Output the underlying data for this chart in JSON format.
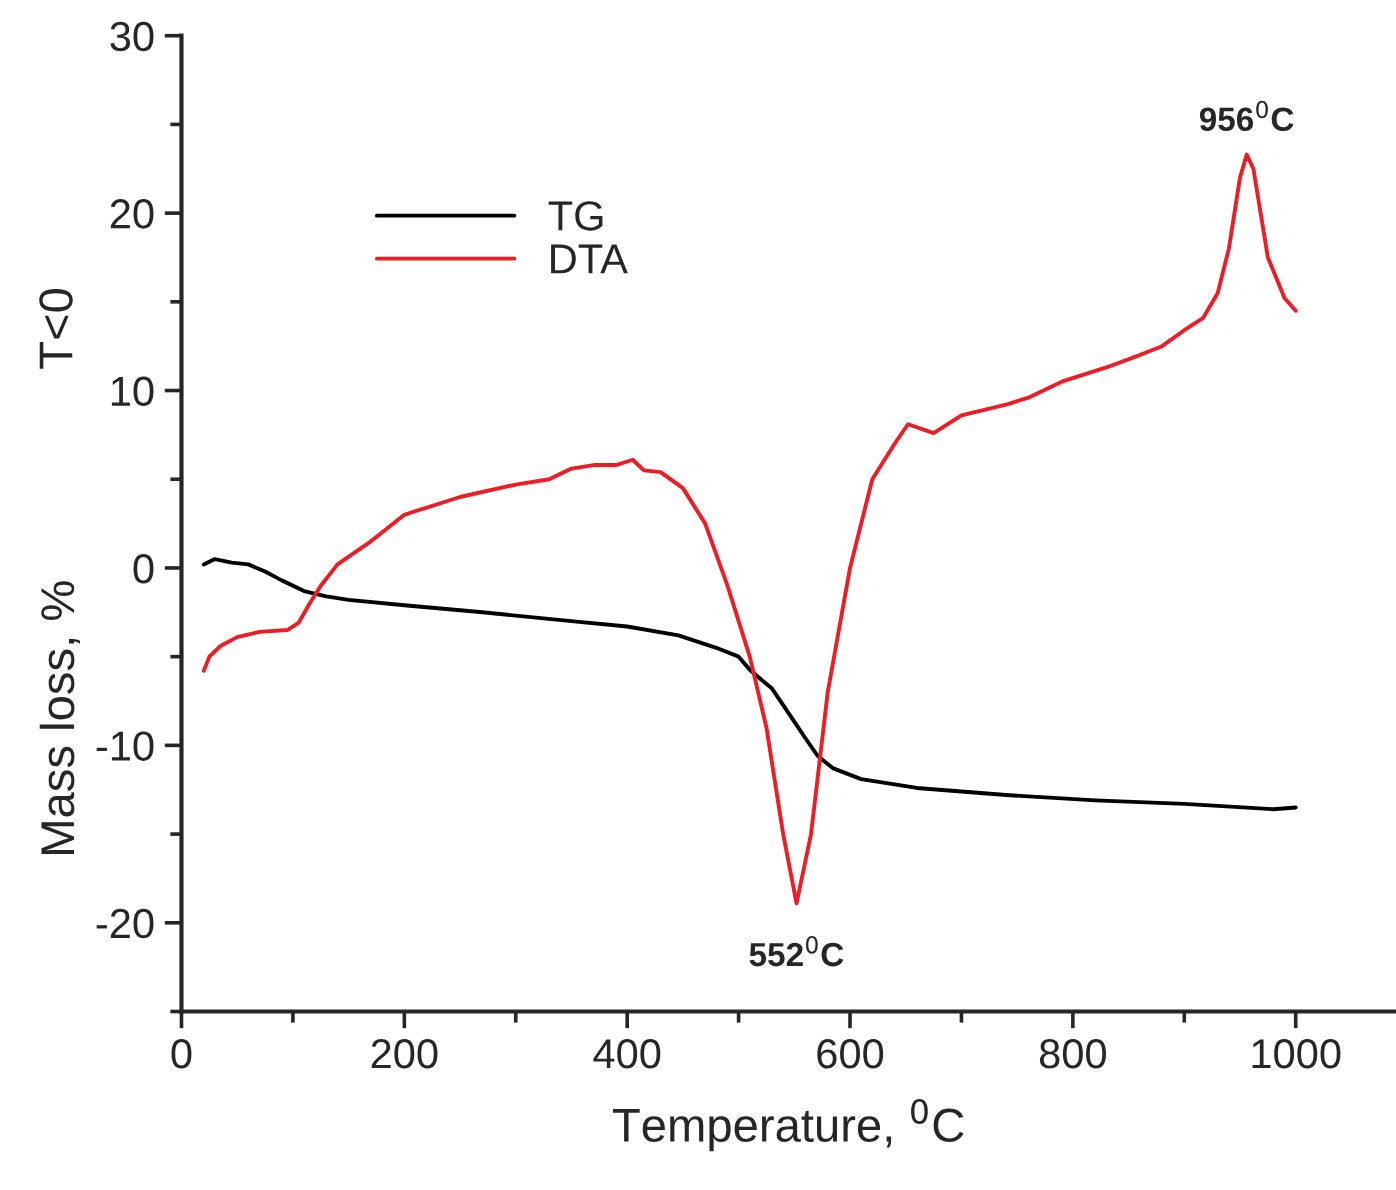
{
  "chart_data": {
    "type": "line",
    "xlabel": "Temperature, $^{0}$C",
    "ylabel": "Mass loss, %",
    "xlim": [
      0,
      1090
    ],
    "xticks": [
      0,
      200,
      400,
      600,
      800,
      1000
    ],
    "ylim": [
      -25,
      30
    ],
    "yticks": [
      -20,
      -10,
      0,
      10,
      20,
      30
    ],
    "grid": false,
    "legend": "top left",
    "line_style": "solid",
    "marker": "none",
    "annotations": [
      "T<0",
      {
        "text": "552$^{0}$C",
        "x": 552,
        "y": -18.9
      },
      {
        "text": "956$^{0}$C",
        "x": 956,
        "y": 23.3
      }
    ],
    "series": [
      {
        "name": "TG",
        "color": "#000000",
        "x": [
          20,
          30,
          45,
          60,
          75,
          90,
          110,
          130,
          150,
          200,
          270,
          350,
          400,
          446,
          480,
          500,
          511,
          530,
          545,
          560,
          571,
          585,
          610,
          660,
          740,
          820,
          900,
          980,
          1000
        ],
        "values": [
          0.2,
          0.5,
          0.3,
          0.2,
          -0.2,
          -0.7,
          -1.3,
          -1.6,
          -1.8,
          -2.1,
          -2.5,
          -3.0,
          -3.3,
          -3.8,
          -4.5,
          -5.0,
          -5.8,
          -6.8,
          -8.2,
          -9.6,
          -10.6,
          -11.3,
          -11.9,
          -12.4,
          -12.8,
          -13.1,
          -13.3,
          -13.6,
          -13.5
        ]
      },
      {
        "name": "DTA",
        "color": "#ee1c25",
        "x": [
          20,
          25,
          35,
          50,
          70,
          95,
          105,
          115,
          125,
          140,
          170,
          200,
          250,
          300,
          330,
          350,
          370,
          390,
          405,
          415,
          430,
          450,
          470,
          490,
          510,
          525,
          540,
          552,
          565,
          580,
          600,
          620,
          640,
          652,
          675,
          700,
          740,
          760,
          790,
          830,
          860,
          880,
          900,
          917,
          930,
          940,
          950,
          956,
          962,
          975,
          990,
          1000
        ],
        "values": [
          -5.8,
          -5.0,
          -4.4,
          -3.9,
          -3.6,
          -3.5,
          -3.1,
          -2.0,
          -1.0,
          0.2,
          1.5,
          3.0,
          4.0,
          4.7,
          5.0,
          5.6,
          5.8,
          5.8,
          6.1,
          5.5,
          5.4,
          4.5,
          2.5,
          -1.0,
          -5.0,
          -9.0,
          -15.0,
          -18.9,
          -15.0,
          -7.0,
          0.0,
          5.0,
          7.0,
          8.1,
          7.6,
          8.6,
          9.2,
          9.6,
          10.5,
          11.3,
          12.0,
          12.5,
          13.4,
          14.1,
          15.5,
          18.0,
          22.0,
          23.3,
          22.5,
          17.5,
          15.2,
          14.5
        ]
      }
    ]
  }
}
